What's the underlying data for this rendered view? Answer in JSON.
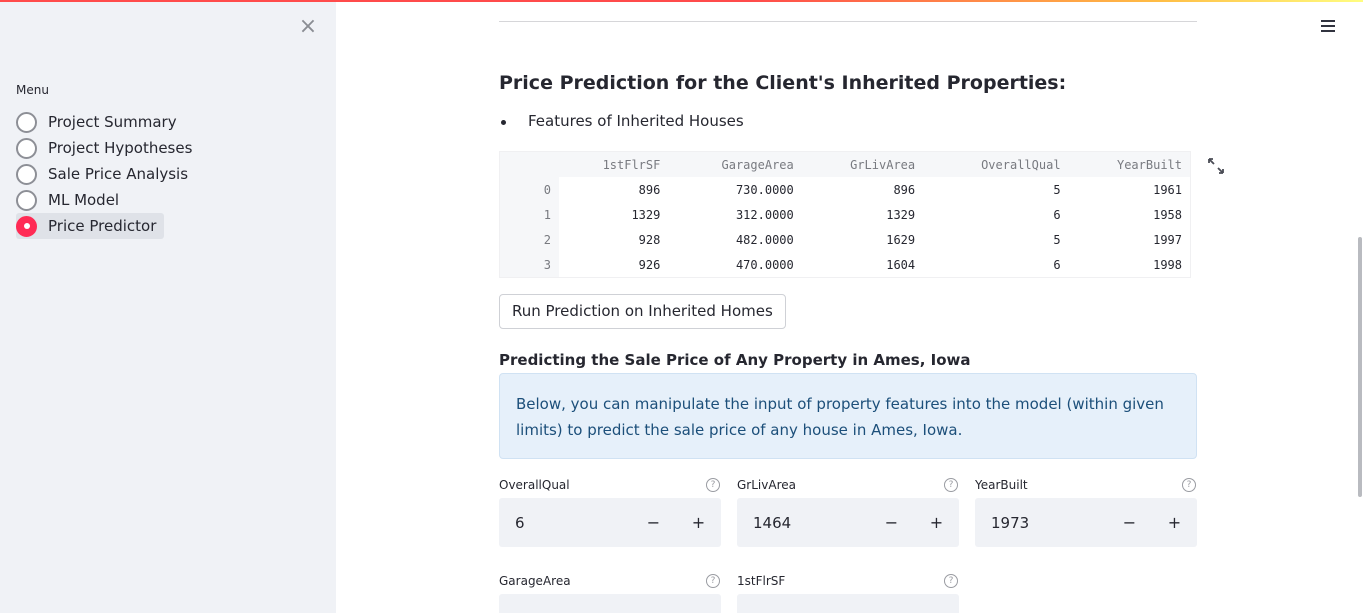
{
  "sidebar": {
    "close_glyph": "×",
    "menu_label": "Menu",
    "items": [
      {
        "label": "Project Summary",
        "selected": false
      },
      {
        "label": "Project Hypotheses",
        "selected": false
      },
      {
        "label": "Sale Price Analysis",
        "selected": false
      },
      {
        "label": "ML Model",
        "selected": false
      },
      {
        "label": "Price Predictor",
        "selected": true
      }
    ]
  },
  "main": {
    "heading": "Price Prediction for the Client's Inherited Properties:",
    "bullet": "Features of Inherited Houses",
    "table": {
      "columns": [
        "",
        "1stFlrSF",
        "GarageArea",
        "GrLivArea",
        "OverallQual",
        "YearBuilt"
      ],
      "rows": [
        [
          "0",
          "896",
          "730.0000",
          "896",
          "5",
          "1961"
        ],
        [
          "1",
          "1329",
          "312.0000",
          "1329",
          "6",
          "1958"
        ],
        [
          "2",
          "928",
          "482.0000",
          "1629",
          "5",
          "1997"
        ],
        [
          "3",
          "926",
          "470.0000",
          "1604",
          "6",
          "1998"
        ]
      ]
    },
    "run_button": "Run Prediction on Inherited Homes",
    "subheading": "Predicting the Sale Price of Any Property in Ames, Iowa",
    "info": "Below, you can manipulate the input of property features into the model (within given limits) to predict the sale price of any house in Ames, Iowa.",
    "inputs": [
      {
        "label": "OverallQual",
        "value": "6"
      },
      {
        "label": "GrLivArea",
        "value": "1464"
      },
      {
        "label": "YearBuilt",
        "value": "1973"
      },
      {
        "label": "GarageArea",
        "value": ""
      },
      {
        "label": "1stFlrSF",
        "value": ""
      }
    ],
    "help_glyph": "?",
    "minus": "−",
    "plus": "+"
  },
  "colors": {
    "accent": "#ff2b55",
    "sidebar_bg": "#f0f2f6",
    "info_bg": "#e6f0fa"
  }
}
